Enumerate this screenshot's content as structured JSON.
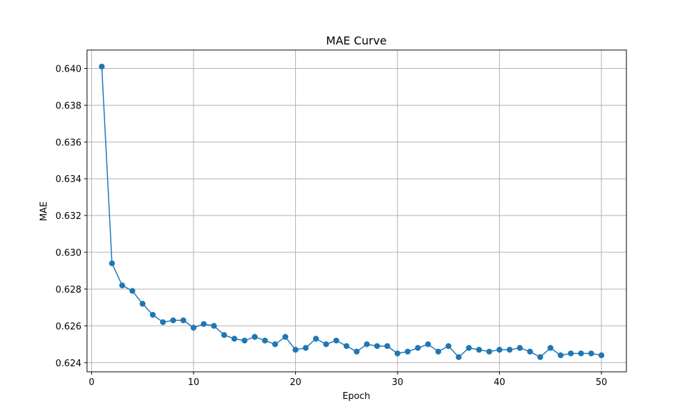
{
  "chart_data": {
    "type": "line",
    "title": "MAE Curve",
    "xlabel": "Epoch",
    "ylabel": "MAE",
    "xlim": [
      -0.45,
      52.45
    ],
    "ylim": [
      0.6235,
      0.641
    ],
    "xticks": [
      0,
      10,
      20,
      30,
      40,
      50
    ],
    "yticks": [
      0.624,
      0.626,
      0.628,
      0.63,
      0.632,
      0.634,
      0.636,
      0.638,
      0.64
    ],
    "ytick_labels": [
      "0.624",
      "0.626",
      "0.628",
      "0.630",
      "0.632",
      "0.634",
      "0.636",
      "0.638",
      "0.640"
    ],
    "grid": true,
    "series": [
      {
        "color": "#1f77b4",
        "marker": "circle",
        "x": [
          1,
          2,
          3,
          4,
          5,
          6,
          7,
          8,
          9,
          10,
          11,
          12,
          13,
          14,
          15,
          16,
          17,
          18,
          19,
          20,
          21,
          22,
          23,
          24,
          25,
          26,
          27,
          28,
          29,
          30,
          31,
          32,
          33,
          34,
          35,
          36,
          37,
          38,
          39,
          40,
          41,
          42,
          43,
          44,
          45,
          46,
          47,
          48,
          49,
          50
        ],
        "y": [
          0.6401,
          0.6294,
          0.6282,
          0.6279,
          0.6272,
          0.6266,
          0.6262,
          0.6263,
          0.6263,
          0.6259,
          0.6261,
          0.626,
          0.6255,
          0.6253,
          0.6252,
          0.6254,
          0.6252,
          0.625,
          0.6254,
          0.6247,
          0.6248,
          0.6253,
          0.625,
          0.6252,
          0.6249,
          0.6246,
          0.625,
          0.6249,
          0.6249,
          0.6245,
          0.6246,
          0.6248,
          0.625,
          0.6246,
          0.6249,
          0.6243,
          0.6248,
          0.6247,
          0.6246,
          0.6247,
          0.6247,
          0.6248,
          0.6246,
          0.6243,
          0.6248,
          0.6244,
          0.6245,
          0.6245,
          0.6245,
          0.6244
        ]
      }
    ]
  }
}
